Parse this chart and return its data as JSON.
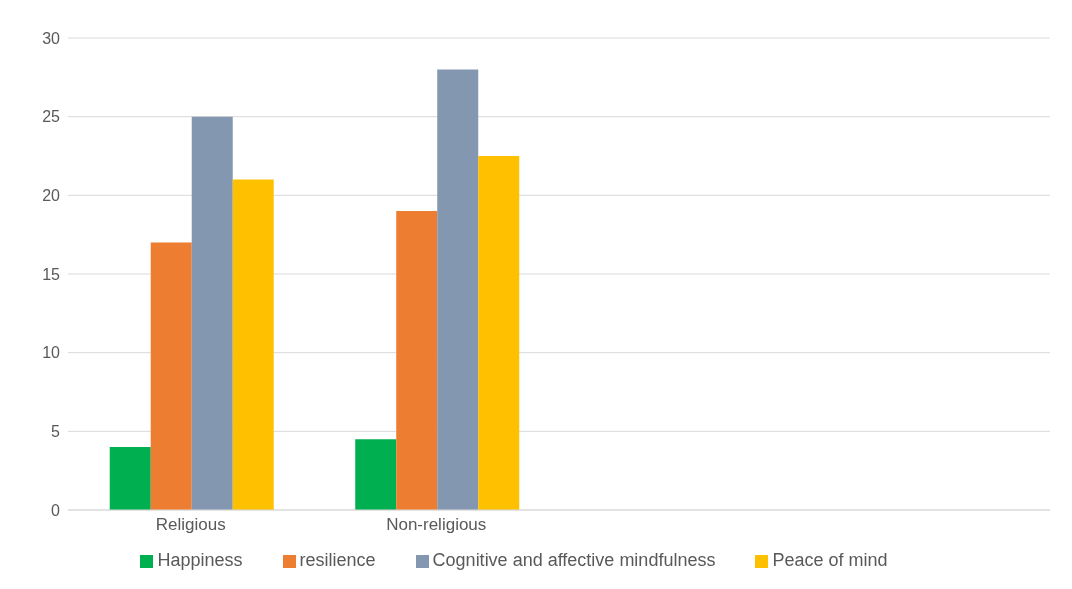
{
  "chart_data": {
    "type": "bar",
    "categories": [
      "Religious",
      "Non-religious",
      null,
      null
    ],
    "series": [
      {
        "name": "Happiness",
        "color": "#00b050",
        "values": [
          4,
          4.5,
          null,
          null
        ]
      },
      {
        "name": "resilience",
        "color": "#ed7d31",
        "values": [
          17,
          19,
          null,
          null
        ]
      },
      {
        "name": "Cognitive and affective mindfulness",
        "color": "#8497b0",
        "values": [
          25,
          28,
          null,
          null
        ]
      },
      {
        "name": "Peace of mind",
        "color": "#ffc000",
        "values": [
          21,
          22.5,
          null,
          null
        ]
      }
    ],
    "ylim": [
      0,
      30
    ],
    "yticks": [
      0,
      5,
      10,
      15,
      20,
      25,
      30
    ],
    "grid": "y",
    "legend": "bottom"
  }
}
